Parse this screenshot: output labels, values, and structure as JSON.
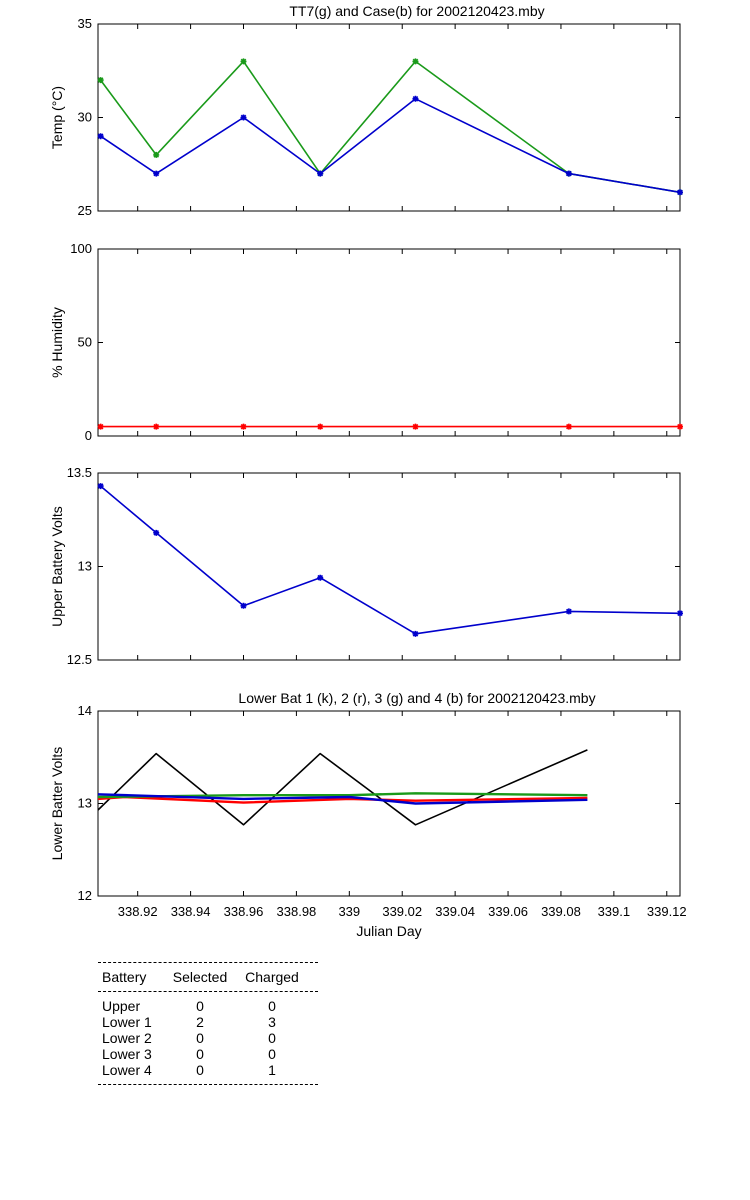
{
  "chart_data": [
    {
      "type": "line",
      "title": "TT7(g) and Case(b) for 2002120423.mby",
      "xlabel": "",
      "ylabel": "Temp  (°C)",
      "xlim": [
        338.905,
        339.125
      ],
      "ylim": [
        25,
        35
      ],
      "yticks": [
        "25",
        "30",
        "35"
      ],
      "grid": false,
      "x": [
        338.906,
        338.927,
        338.96,
        338.989,
        339.025,
        339.083,
        339.125
      ],
      "series": [
        {
          "color": "#1a9a1a",
          "marker": "*",
          "values": [
            32,
            28,
            33,
            27,
            33,
            27,
            26
          ]
        },
        {
          "color": "#0000cc",
          "marker": "*",
          "values": [
            29,
            27,
            30,
            27,
            31,
            27,
            26
          ]
        }
      ]
    },
    {
      "type": "line",
      "title": "",
      "xlabel": "",
      "ylabel": "% Humidity",
      "xlim": [
        338.905,
        339.125
      ],
      "ylim": [
        0,
        100
      ],
      "yticks": [
        "0",
        "50",
        "100"
      ],
      "grid": false,
      "x": [
        338.906,
        338.927,
        338.96,
        338.989,
        339.025,
        339.083,
        339.125
      ],
      "series": [
        {
          "color": "#ff0000",
          "marker": "*",
          "values": [
            5,
            5,
            5,
            5,
            5,
            5,
            5
          ]
        }
      ]
    },
    {
      "type": "line",
      "title": "",
      "xlabel": "",
      "ylabel": "Upper Battery Volts",
      "xlim": [
        338.905,
        339.125
      ],
      "ylim": [
        12.5,
        13.5
      ],
      "yticks": [
        "12.5",
        "13",
        "13.5"
      ],
      "grid": false,
      "x": [
        338.906,
        338.927,
        338.96,
        338.989,
        339.025,
        339.083,
        339.125
      ],
      "series": [
        {
          "color": "#0000cc",
          "marker": "*",
          "values": [
            13.43,
            13.18,
            12.79,
            12.94,
            12.64,
            12.76,
            12.75
          ]
        }
      ]
    },
    {
      "type": "line",
      "title": "Lower Bat 1 (k), 2 (r), 3 (g) and 4 (b) for 2002120423.mby",
      "xlabel": "Julian Day",
      "ylabel": "Lower Batter Volts",
      "xlim": [
        338.905,
        339.125
      ],
      "ylim": [
        12,
        14
      ],
      "yticks": [
        "12",
        "13",
        "14"
      ],
      "xticks": [
        338.92,
        338.94,
        338.96,
        338.98,
        339.0,
        339.02,
        339.04,
        339.06,
        339.08,
        339.1,
        339.12
      ],
      "xticklabels": [
        "338.92",
        "338.94",
        "338.96",
        "338.98",
        "339",
        "339.02",
        "339.04",
        "339.06",
        "339.08",
        "339.1",
        "339.12"
      ],
      "grid": false,
      "series": [
        {
          "color": "#000000",
          "x": [
            338.905,
            338.927,
            338.96,
            338.989,
            339.025,
            339.09
          ],
          "values": [
            12.93,
            13.54,
            12.77,
            13.54,
            12.77,
            13.58
          ]
        },
        {
          "color": "#ff0000",
          "x": [
            338.905,
            338.915,
            338.96,
            339.0,
            339.025,
            339.09
          ],
          "values": [
            13.05,
            13.07,
            13.01,
            13.05,
            13.03,
            13.06
          ]
        },
        {
          "color": "#1a9a1a",
          "x": [
            338.905,
            338.96,
            339.0,
            339.025,
            339.09
          ],
          "values": [
            13.07,
            13.09,
            13.09,
            13.11,
            13.09
          ]
        },
        {
          "color": "#0000cc",
          "x": [
            338.905,
            338.96,
            339.0,
            339.025,
            339.09
          ],
          "values": [
            13.1,
            13.05,
            13.07,
            13.0,
            13.04
          ]
        }
      ]
    }
  ],
  "battery_table": {
    "headers": [
      "Battery",
      "Selected",
      "Charged"
    ],
    "rows": [
      [
        "Upper",
        "0",
        "0"
      ],
      [
        "Lower 1",
        "2",
        "3"
      ],
      [
        "Lower 2",
        "0",
        "0"
      ],
      [
        "Lower 3",
        "0",
        "0"
      ],
      [
        "Lower 4",
        "0",
        "1"
      ]
    ]
  }
}
